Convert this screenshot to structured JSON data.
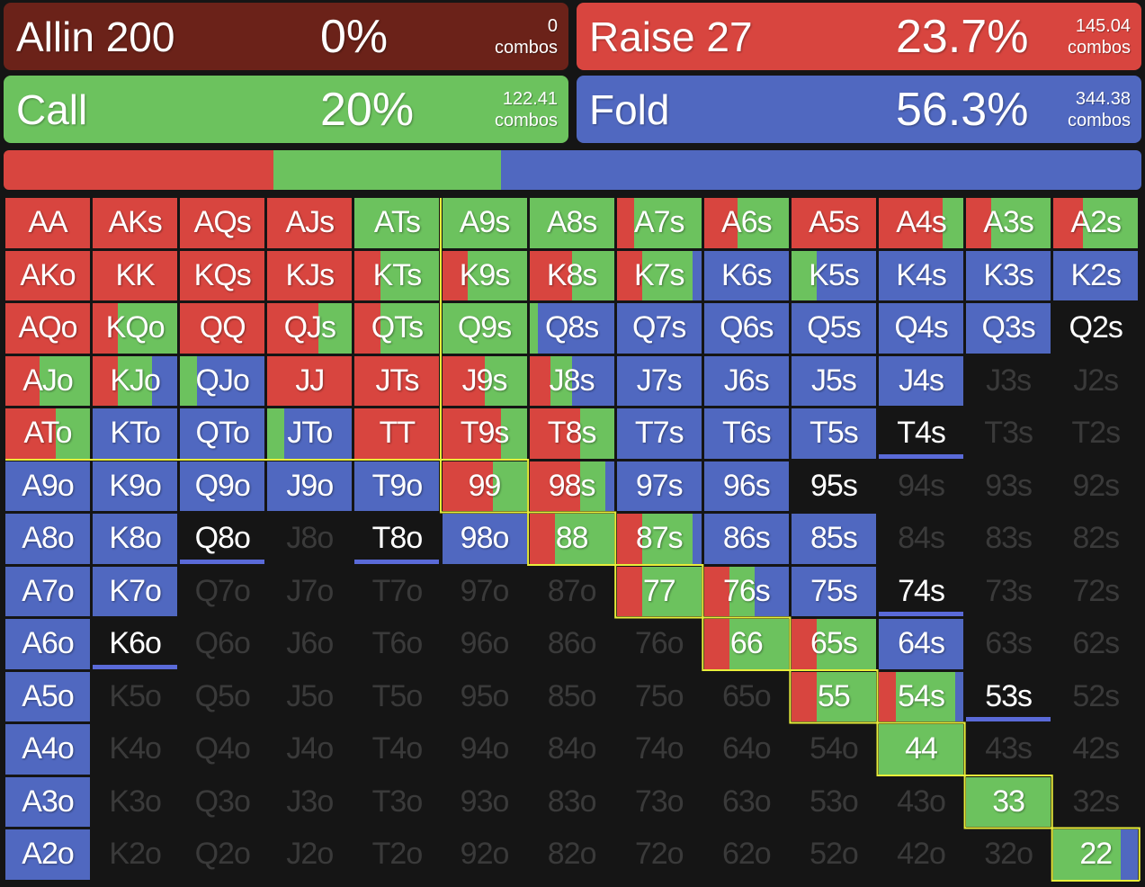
{
  "colors": {
    "raise": "#d8453f",
    "call": "#6cc25e",
    "fold": "#5068c0",
    "allin": "#6b2219",
    "bg": "#151515",
    "range_line": "#e8ee3a"
  },
  "actions": {
    "allin": {
      "name": "Allin 200",
      "pct": "0%",
      "combos": "0",
      "combos_label": "combos"
    },
    "raise": {
      "name": "Raise 27",
      "pct": "23.7%",
      "combos": "145.04",
      "combos_label": "combos"
    },
    "call": {
      "name": "Call",
      "pct": "20%",
      "combos": "122.41",
      "combos_label": "combos"
    },
    "fold": {
      "name": "Fold",
      "pct": "56.3%",
      "combos": "344.38",
      "combos_label": "combos"
    }
  },
  "summary": {
    "raise": 0.237,
    "call": 0.2,
    "fold": 0.563
  },
  "grid": [
    [
      {
        "h": "AA",
        "r": 1
      },
      {
        "h": "AKs",
        "r": 1
      },
      {
        "h": "AQs",
        "r": 1
      },
      {
        "h": "AJs",
        "r": 1
      },
      {
        "h": "ATs",
        "c": 1
      },
      {
        "h": "A9s",
        "c": 1
      },
      {
        "h": "A8s",
        "c": 1
      },
      {
        "h": "A7s",
        "r": 0.2,
        "c": 0.8
      },
      {
        "h": "A6s",
        "r": 0.4,
        "c": 0.6
      },
      {
        "h": "A5s",
        "r": 1
      },
      {
        "h": "A4s",
        "r": 0.75,
        "c": 0.25
      },
      {
        "h": "A3s",
        "r": 0.3,
        "c": 0.7
      },
      {
        "h": "A2s",
        "r": 0.35,
        "c": 0.65
      }
    ],
    [
      {
        "h": "AKo",
        "r": 1
      },
      {
        "h": "KK",
        "r": 1
      },
      {
        "h": "KQs",
        "r": 1
      },
      {
        "h": "KJs",
        "r": 1
      },
      {
        "h": "KTs",
        "r": 0.3,
        "c": 0.7
      },
      {
        "h": "K9s",
        "r": 0.3,
        "c": 0.7
      },
      {
        "h": "K8s",
        "r": 0.5,
        "c": 0.5
      },
      {
        "h": "K7s",
        "r": 0.3,
        "c": 0.6,
        "f": 0.1
      },
      {
        "h": "K6s",
        "f": 1
      },
      {
        "h": "K5s",
        "c": 0.3,
        "f": 0.7
      },
      {
        "h": "K4s",
        "f": 1
      },
      {
        "h": "K3s",
        "f": 1
      },
      {
        "h": "K2s",
        "f": 1
      }
    ],
    [
      {
        "h": "AQo",
        "r": 1
      },
      {
        "h": "KQo",
        "r": 0.3,
        "c": 0.7
      },
      {
        "h": "QQ",
        "r": 1
      },
      {
        "h": "QJs",
        "r": 0.6,
        "c": 0.4
      },
      {
        "h": "QTs",
        "r": 0.3,
        "c": 0.7
      },
      {
        "h": "Q9s",
        "c": 1
      },
      {
        "h": "Q8s",
        "c": 0.1,
        "f": 0.9
      },
      {
        "h": "Q7s",
        "f": 1
      },
      {
        "h": "Q6s",
        "f": 1
      },
      {
        "h": "Q5s",
        "f": 1
      },
      {
        "h": "Q4s",
        "f": 1
      },
      {
        "h": "Q3s",
        "f": 1
      },
      {
        "h": "Q2s",
        "e": 1
      }
    ],
    [
      {
        "h": "AJo",
        "r": 0.4,
        "c": 0.6
      },
      {
        "h": "KJo",
        "r": 0.3,
        "c": 0.4,
        "f": 0.3
      },
      {
        "h": "QJo",
        "c": 0.2,
        "f": 0.8
      },
      {
        "h": "JJ",
        "r": 1
      },
      {
        "h": "JTs",
        "r": 1
      },
      {
        "h": "J9s",
        "r": 0.5,
        "c": 0.5
      },
      {
        "h": "J8s",
        "r": 0.25,
        "c": 0.25,
        "f": 0.5
      },
      {
        "h": "J7s",
        "f": 1
      },
      {
        "h": "J6s",
        "f": 1
      },
      {
        "h": "J5s",
        "f": 1
      },
      {
        "h": "J4s",
        "f": 1
      },
      {
        "h": "J3s",
        "d": 1
      },
      {
        "h": "J2s",
        "d": 1
      }
    ],
    [
      {
        "h": "ATo",
        "r": 0.6,
        "c": 0.4
      },
      {
        "h": "KTo",
        "f": 1
      },
      {
        "h": "QTo",
        "f": 1
      },
      {
        "h": "JTo",
        "c": 0.2,
        "f": 0.8
      },
      {
        "h": "TT",
        "r": 1
      },
      {
        "h": "T9s",
        "r": 0.7,
        "c": 0.3
      },
      {
        "h": "T8s",
        "r": 0.6,
        "c": 0.4
      },
      {
        "h": "T7s",
        "f": 1
      },
      {
        "h": "T6s",
        "f": 1
      },
      {
        "h": "T5s",
        "f": 1
      },
      {
        "h": "T4s",
        "e": 1,
        "u": 1
      },
      {
        "h": "T3s",
        "d": 1
      },
      {
        "h": "T2s",
        "d": 1
      }
    ],
    [
      {
        "h": "A9o",
        "f": 1
      },
      {
        "h": "K9o",
        "f": 1
      },
      {
        "h": "Q9o",
        "f": 1
      },
      {
        "h": "J9o",
        "f": 1
      },
      {
        "h": "T9o",
        "f": 1
      },
      {
        "h": "99",
        "r": 0.6,
        "c": 0.4
      },
      {
        "h": "98s",
        "r": 0.6,
        "c": 0.3,
        "f": 0.1
      },
      {
        "h": "97s",
        "f": 1
      },
      {
        "h": "96s",
        "f": 1
      },
      {
        "h": "95s",
        "e": 1
      },
      {
        "h": "94s",
        "d": 1
      },
      {
        "h": "93s",
        "d": 1
      },
      {
        "h": "92s",
        "d": 1
      }
    ],
    [
      {
        "h": "A8o",
        "f": 1
      },
      {
        "h": "K8o",
        "f": 1
      },
      {
        "h": "Q8o",
        "e": 1,
        "u": 1
      },
      {
        "h": "J8o",
        "d": 1
      },
      {
        "h": "T8o",
        "e": 1,
        "u": 1
      },
      {
        "h": "98o",
        "f": 1
      },
      {
        "h": "88",
        "r": 0.3,
        "c": 0.7
      },
      {
        "h": "87s",
        "r": 0.3,
        "c": 0.6,
        "f": 0.1
      },
      {
        "h": "86s",
        "f": 1
      },
      {
        "h": "85s",
        "f": 1
      },
      {
        "h": "84s",
        "d": 1
      },
      {
        "h": "83s",
        "d": 1
      },
      {
        "h": "82s",
        "d": 1
      }
    ],
    [
      {
        "h": "A7o",
        "f": 1
      },
      {
        "h": "K7o",
        "f": 1
      },
      {
        "h": "Q7o",
        "d": 1
      },
      {
        "h": "J7o",
        "d": 1
      },
      {
        "h": "T7o",
        "d": 1
      },
      {
        "h": "97o",
        "d": 1
      },
      {
        "h": "87o",
        "d": 1
      },
      {
        "h": "77",
        "r": 0.3,
        "c": 0.7
      },
      {
        "h": "76s",
        "r": 0.3,
        "c": 0.3,
        "f": 0.4
      },
      {
        "h": "75s",
        "f": 1
      },
      {
        "h": "74s",
        "e": 1,
        "u": 1
      },
      {
        "h": "73s",
        "d": 1
      },
      {
        "h": "72s",
        "d": 1
      }
    ],
    [
      {
        "h": "A6o",
        "f": 1
      },
      {
        "h": "K6o",
        "e": 1,
        "u": 1
      },
      {
        "h": "Q6o",
        "d": 1
      },
      {
        "h": "J6o",
        "d": 1
      },
      {
        "h": "T6o",
        "d": 1
      },
      {
        "h": "96o",
        "d": 1
      },
      {
        "h": "86o",
        "d": 1
      },
      {
        "h": "76o",
        "d": 1
      },
      {
        "h": "66",
        "r": 0.3,
        "c": 0.7
      },
      {
        "h": "65s",
        "r": 0.3,
        "c": 0.7
      },
      {
        "h": "64s",
        "f": 1
      },
      {
        "h": "63s",
        "d": 1
      },
      {
        "h": "62s",
        "d": 1
      }
    ],
    [
      {
        "h": "A5o",
        "f": 1
      },
      {
        "h": "K5o",
        "d": 1
      },
      {
        "h": "Q5o",
        "d": 1
      },
      {
        "h": "J5o",
        "d": 1
      },
      {
        "h": "T5o",
        "d": 1
      },
      {
        "h": "95o",
        "d": 1
      },
      {
        "h": "85o",
        "d": 1
      },
      {
        "h": "75o",
        "d": 1
      },
      {
        "h": "65o",
        "d": 1
      },
      {
        "h": "55",
        "r": 0.3,
        "c": 0.7
      },
      {
        "h": "54s",
        "r": 0.2,
        "c": 0.7,
        "f": 0.1
      },
      {
        "h": "53s",
        "e": 1,
        "u": 1
      },
      {
        "h": "52s",
        "d": 1
      }
    ],
    [
      {
        "h": "A4o",
        "f": 1
      },
      {
        "h": "K4o",
        "d": 1
      },
      {
        "h": "Q4o",
        "d": 1
      },
      {
        "h": "J4o",
        "d": 1
      },
      {
        "h": "T4o",
        "d": 1
      },
      {
        "h": "94o",
        "d": 1
      },
      {
        "h": "84o",
        "d": 1
      },
      {
        "h": "74o",
        "d": 1
      },
      {
        "h": "64o",
        "d": 1
      },
      {
        "h": "54o",
        "d": 1
      },
      {
        "h": "44",
        "c": 1
      },
      {
        "h": "43s",
        "d": 1
      },
      {
        "h": "42s",
        "d": 1
      }
    ],
    [
      {
        "h": "A3o",
        "f": 1
      },
      {
        "h": "K3o",
        "d": 1
      },
      {
        "h": "Q3o",
        "d": 1
      },
      {
        "h": "J3o",
        "d": 1
      },
      {
        "h": "T3o",
        "d": 1
      },
      {
        "h": "93o",
        "d": 1
      },
      {
        "h": "83o",
        "d": 1
      },
      {
        "h": "73o",
        "d": 1
      },
      {
        "h": "63o",
        "d": 1
      },
      {
        "h": "53o",
        "d": 1
      },
      {
        "h": "43o",
        "d": 1
      },
      {
        "h": "33",
        "c": 1
      },
      {
        "h": "32s",
        "d": 1
      }
    ],
    [
      {
        "h": "A2o",
        "f": 1
      },
      {
        "h": "K2o",
        "d": 1
      },
      {
        "h": "Q2o",
        "d": 1
      },
      {
        "h": "J2o",
        "d": 1
      },
      {
        "h": "T2o",
        "d": 1
      },
      {
        "h": "92o",
        "d": 1
      },
      {
        "h": "82o",
        "d": 1
      },
      {
        "h": "72o",
        "d": 1
      },
      {
        "h": "62o",
        "d": 1
      },
      {
        "h": "52o",
        "d": 1
      },
      {
        "h": "42o",
        "d": 1
      },
      {
        "h": "32o",
        "d": 1
      },
      {
        "h": "22",
        "c": 0.8,
        "f": 0.2
      }
    ]
  ]
}
